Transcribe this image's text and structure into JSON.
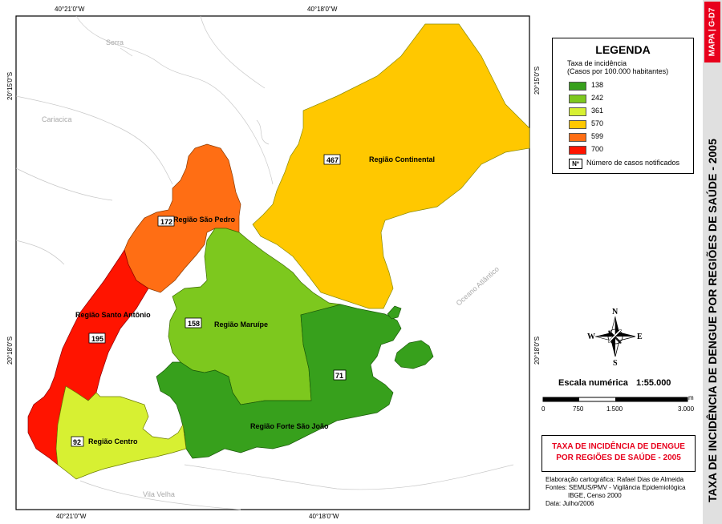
{
  "coordinates": {
    "top_left": "40°21'0\"W",
    "top_right": "40°18'0\"W",
    "bottom_left": "40°21'0\"W",
    "bottom_right": "40°18'0\"W",
    "left_upper": "20°15'0\"S",
    "left_lower": "20°18'0\"S",
    "right_upper": "20°15'0\"S",
    "right_lower": "20°18'0\"S"
  },
  "background_labels": {
    "serra": "Serra",
    "cariacica": "Cariacica",
    "vila_velha": "Vila Velha",
    "ocean": "Oceano Atlântico"
  },
  "regions": [
    {
      "name": "Região Continental",
      "count": "467",
      "rate": 570,
      "color": "#ffc800"
    },
    {
      "name": "Região São Pedro",
      "count": "172",
      "rate": 599,
      "color": "#ff6e14"
    },
    {
      "name": "Região Santo Antônio",
      "count": "195",
      "rate": 700,
      "color": "#ff1400"
    },
    {
      "name": "Região Maruípe",
      "count": "158",
      "rate": 242,
      "color": "#7dc81e"
    },
    {
      "name": "Região Forte São João",
      "count": "71",
      "rate": 138,
      "color": "#37a01c"
    },
    {
      "name": "Região Centro",
      "count": "92",
      "rate": 361,
      "color": "#d7f032"
    }
  ],
  "legend": {
    "title": "LEGENDA",
    "subtitle1": "Taxa de incidência",
    "subtitle2": "(Casos por 100.000 habitantes)",
    "items": [
      {
        "label": "138",
        "color": "#37a01c"
      },
      {
        "label": "242",
        "color": "#7dc81e"
      },
      {
        "label": "361",
        "color": "#d7f032"
      },
      {
        "label": "570",
        "color": "#ffc800"
      },
      {
        "label": "599",
        "color": "#ff6e14"
      },
      {
        "label": "700",
        "color": "#ff1400"
      }
    ],
    "count_symbol": "Nº",
    "count_label": "Número de casos notificados"
  },
  "compass": {
    "n": "N",
    "s": "S",
    "e": "E",
    "w": "W"
  },
  "scale": {
    "title": "Escala numérica",
    "value": "1:55.000",
    "ticks": [
      "0",
      "750",
      "1.500",
      "3.000"
    ],
    "unit": "m"
  },
  "map_title": {
    "line1": "TAXA DE INCIDÊNCIA DE DENGUE",
    "line2": "POR REGIÕES DE SAÚDE - 2005"
  },
  "credits": {
    "line1": "Elaboração cartográfica: Rafael Dias de Almeida",
    "line2": "Fontes: SEMUS/PMV - Vigilância Epidemiológica",
    "line3": "IBGE, Censo 2000",
    "line4": "Data: Julho/2006"
  },
  "side": {
    "tag": "MAPA | G-D7",
    "title": "TAXA DE INCIDÊNCIA DE DENGUE POR REGIÕES DE SAÚDE - 2005"
  }
}
